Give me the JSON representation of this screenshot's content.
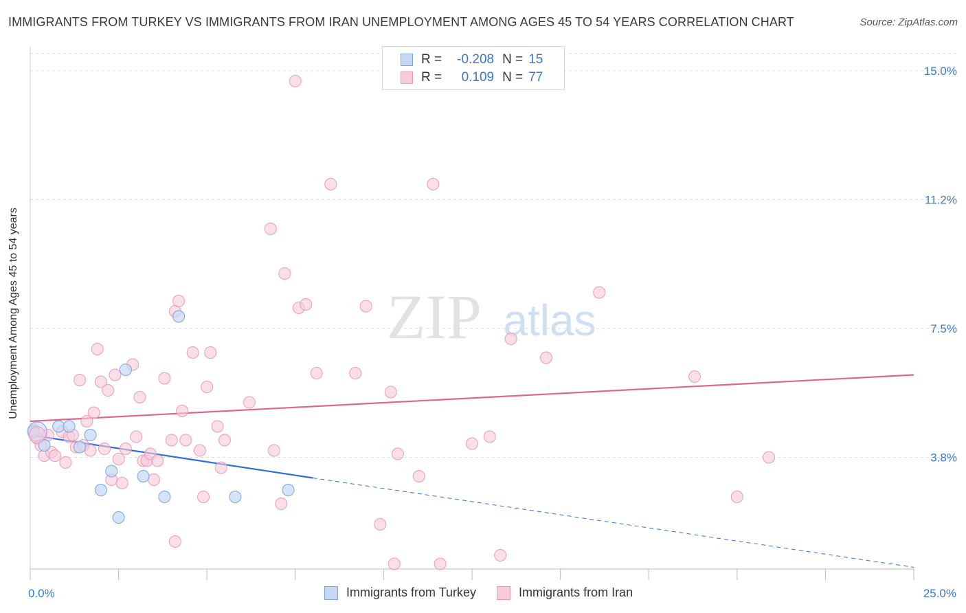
{
  "header": {
    "title": "IMMIGRANTS FROM TURKEY VS IMMIGRANTS FROM IRAN UNEMPLOYMENT AMONG AGES 45 TO 54 YEARS CORRELATION CHART",
    "source": "Source: ZipAtlas.com"
  },
  "watermark": {
    "zip": "ZIP",
    "atlas": "atlas"
  },
  "legend_top": {
    "rows": [
      {
        "r_label": "R =",
        "r_value": "-0.208",
        "n_label": "N =",
        "n_value": "15"
      },
      {
        "r_label": "R =",
        "r_value": "0.109",
        "n_label": "N =",
        "n_value": "77"
      }
    ]
  },
  "legend_bottom": {
    "items": [
      {
        "label": "Immigrants from Turkey"
      },
      {
        "label": "Immigrants from Iran"
      }
    ]
  },
  "colors": {
    "turkey_fill": "#c5d9f5",
    "turkey_stroke": "#7ba3de",
    "turkey_line": "#2f6fd6",
    "iran_fill": "#f9cad9",
    "iran_stroke": "#ec9ab5",
    "iran_line": "#e0668f",
    "axis_label": "#3b78c9",
    "grid": "#dddddd"
  },
  "chart_data": {
    "type": "scatter",
    "title": "IMMIGRANTS FROM TURKEY VS IMMIGRANTS FROM IRAN UNEMPLOYMENT AMONG AGES 45 TO 54 YEARS CORRELATION CHART",
    "xlabel": "",
    "ylabel": "Unemployment Among Ages 45 to 54 years",
    "xlim": [
      0,
      25
    ],
    "ylim": [
      0.5,
      15.5
    ],
    "x_tick_labels": [
      {
        "value": 0,
        "label": "0.0%"
      },
      {
        "value": 25,
        "label": "25.0%"
      }
    ],
    "y_ticks": [
      {
        "value": 3.75,
        "label": "3.8%"
      },
      {
        "value": 7.5,
        "label": "7.5%"
      },
      {
        "value": 11.25,
        "label": "11.2%"
      },
      {
        "value": 15.0,
        "label": "15.0%"
      }
    ],
    "series": [
      {
        "name": "Immigrants from Turkey",
        "R": -0.208,
        "N": 15,
        "points": [
          [
            0.1,
            4.5
          ],
          [
            0.4,
            4.1
          ],
          [
            0.8,
            4.65
          ],
          [
            1.1,
            4.65
          ],
          [
            1.4,
            4.05
          ],
          [
            1.7,
            4.4
          ],
          [
            2.0,
            2.8
          ],
          [
            2.3,
            3.35
          ],
          [
            2.5,
            2.0
          ],
          [
            2.7,
            6.3
          ],
          [
            3.2,
            3.2
          ],
          [
            3.8,
            2.6
          ],
          [
            4.2,
            7.85
          ],
          [
            5.8,
            2.6
          ],
          [
            7.3,
            2.8
          ]
        ],
        "trend": {
          "x": [
            0,
            8
          ],
          "y": [
            4.4,
            3.15
          ],
          "extended": {
            "x": [
              8,
              25
            ],
            "y": [
              3.15,
              0.55
            ]
          }
        }
      },
      {
        "name": "Immigrants from Iran",
        "R": 0.109,
        "N": 77,
        "points": [
          [
            0.2,
            4.3
          ],
          [
            0.3,
            4.1
          ],
          [
            0.4,
            3.8
          ],
          [
            0.5,
            4.4
          ],
          [
            0.6,
            3.9
          ],
          [
            0.7,
            3.8
          ],
          [
            0.9,
            4.5
          ],
          [
            1.0,
            3.6
          ],
          [
            1.1,
            4.35
          ],
          [
            1.2,
            4.4
          ],
          [
            1.3,
            4.05
          ],
          [
            1.4,
            6.0
          ],
          [
            1.5,
            4.1
          ],
          [
            1.6,
            4.8
          ],
          [
            1.7,
            3.95
          ],
          [
            1.8,
            5.05
          ],
          [
            1.9,
            6.9
          ],
          [
            2.0,
            5.95
          ],
          [
            2.1,
            4.0
          ],
          [
            2.2,
            5.7
          ],
          [
            2.3,
            3.1
          ],
          [
            2.4,
            6.15
          ],
          [
            2.5,
            3.7
          ],
          [
            2.6,
            3.0
          ],
          [
            2.7,
            4.0
          ],
          [
            2.9,
            6.45
          ],
          [
            3.0,
            4.35
          ],
          [
            3.1,
            5.5
          ],
          [
            3.2,
            3.65
          ],
          [
            3.3,
            3.65
          ],
          [
            3.4,
            3.85
          ],
          [
            3.5,
            3.1
          ],
          [
            3.6,
            3.65
          ],
          [
            3.8,
            6.05
          ],
          [
            4.0,
            4.25
          ],
          [
            4.1,
            1.3
          ],
          [
            4.1,
            8.0
          ],
          [
            4.2,
            8.3
          ],
          [
            4.3,
            5.1
          ],
          [
            4.4,
            4.25
          ],
          [
            4.6,
            6.8
          ],
          [
            4.8,
            3.95
          ],
          [
            4.9,
            2.6
          ],
          [
            5.0,
            5.8
          ],
          [
            5.1,
            6.8
          ],
          [
            5.3,
            4.65
          ],
          [
            5.4,
            3.45
          ],
          [
            5.5,
            4.25
          ],
          [
            6.2,
            5.35
          ],
          [
            6.8,
            10.4
          ],
          [
            6.9,
            3.95
          ],
          [
            7.1,
            2.4
          ],
          [
            7.2,
            9.1
          ],
          [
            7.5,
            14.7
          ],
          [
            7.6,
            8.1
          ],
          [
            7.8,
            8.2
          ],
          [
            8.1,
            6.2
          ],
          [
            8.5,
            11.7
          ],
          [
            9.2,
            6.2
          ],
          [
            9.5,
            8.15
          ],
          [
            9.9,
            1.8
          ],
          [
            10.2,
            5.65
          ],
          [
            10.3,
            0.65
          ],
          [
            10.4,
            3.85
          ],
          [
            11.0,
            3.2
          ],
          [
            11.4,
            11.7
          ],
          [
            11.6,
            0.65
          ],
          [
            12.5,
            4.15
          ],
          [
            13.0,
            4.35
          ],
          [
            13.3,
            0.9
          ],
          [
            13.6,
            7.2
          ],
          [
            14.6,
            6.65
          ],
          [
            16.1,
            8.55
          ],
          [
            18.8,
            6.1
          ],
          [
            20.0,
            2.6
          ],
          [
            20.9,
            3.75
          ],
          [
            0.1,
            4.55
          ]
        ],
        "trend": {
          "x": [
            0,
            25
          ],
          "y": [
            4.8,
            6.15
          ]
        }
      }
    ]
  }
}
